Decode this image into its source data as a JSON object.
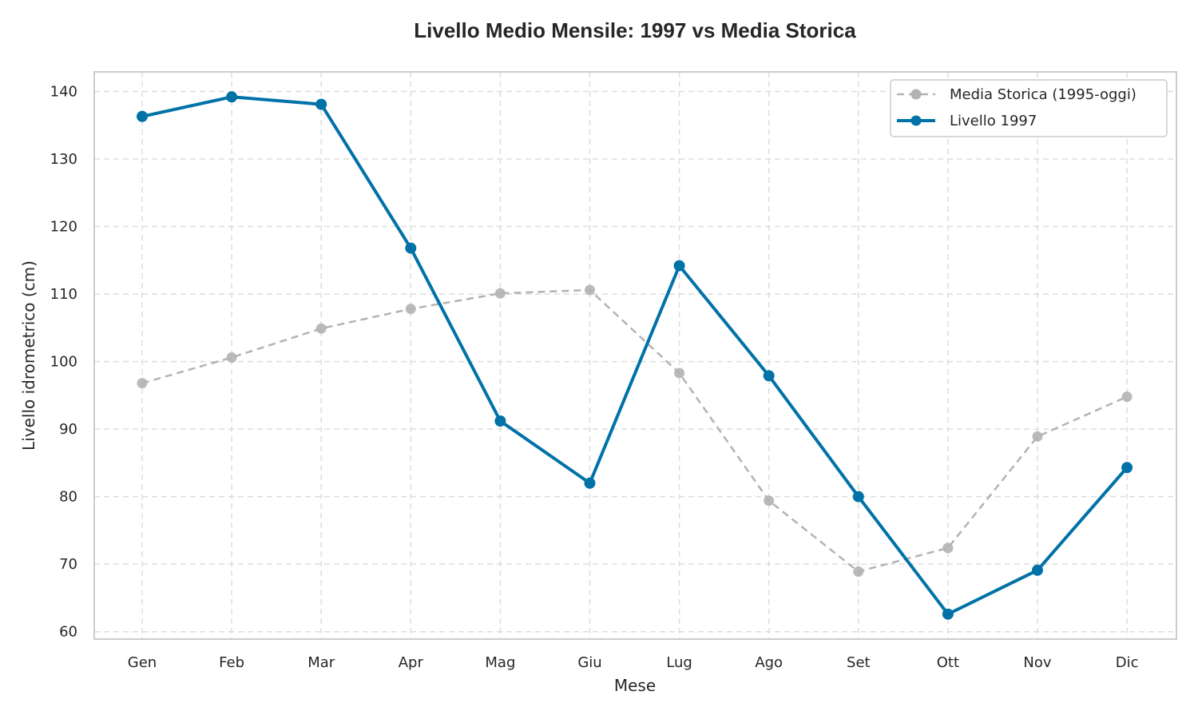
{
  "chart_data": {
    "type": "line",
    "title": "Livello Medio Mensile: 1997 vs Media Storica",
    "xlabel": "Mese",
    "ylabel": "Livello idrometrico (cm)",
    "categories": [
      "Gen",
      "Feb",
      "Mar",
      "Apr",
      "Mag",
      "Giu",
      "Lug",
      "Ago",
      "Set",
      "Ott",
      "Nov",
      "Dic"
    ],
    "ylim": [
      58.9,
      142.9
    ],
    "yticks": [
      60,
      70,
      80,
      90,
      100,
      110,
      120,
      130,
      140
    ],
    "grid": true,
    "legend_position": "top-right",
    "series": [
      {
        "name": "Media Storica (1995-oggi)",
        "style": "dashed",
        "color": "#b3b3b3",
        "values": [
          96.8,
          100.6,
          104.9,
          107.8,
          110.1,
          110.6,
          98.3,
          79.4,
          68.9,
          72.4,
          88.9,
          94.8
        ]
      },
      {
        "name": "Livello 1997",
        "style": "solid",
        "color": "#0072a8",
        "values": [
          136.3,
          139.2,
          138.1,
          116.8,
          91.2,
          82.0,
          114.2,
          97.9,
          80.0,
          62.6,
          69.1,
          84.3
        ]
      }
    ]
  }
}
